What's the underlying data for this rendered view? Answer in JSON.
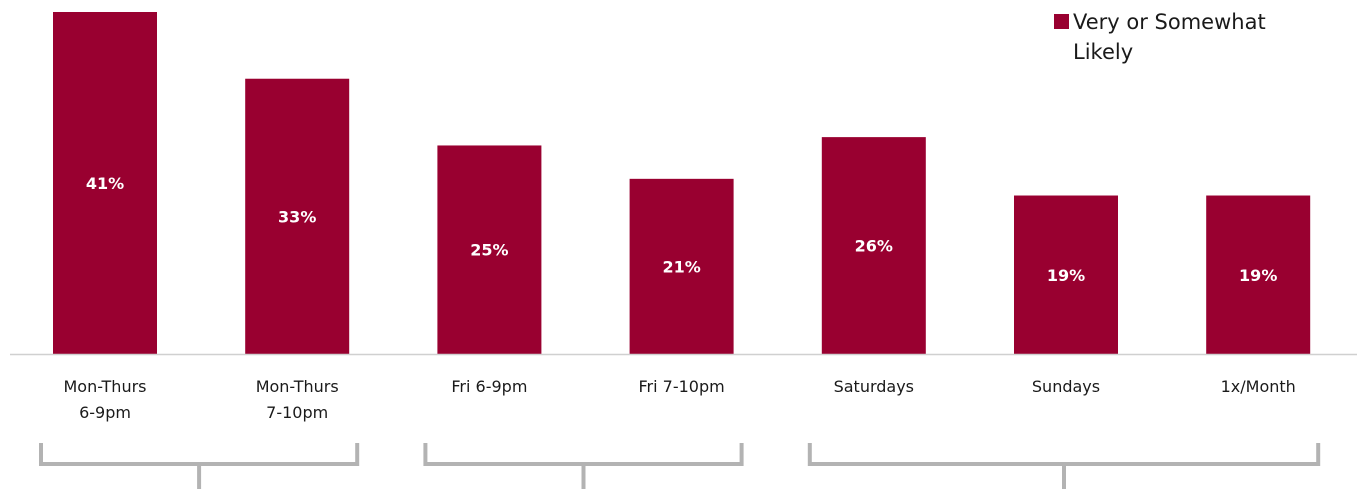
{
  "chart_data": {
    "type": "bar",
    "categories": [
      [
        "Mon-Thurs",
        "6-9pm"
      ],
      [
        "Mon-Thurs",
        "7-10pm"
      ],
      [
        "Fri 6-9pm"
      ],
      [
        "Fri 7-10pm"
      ],
      [
        "Saturdays"
      ],
      [
        "Sundays"
      ],
      [
        "1x/Month"
      ]
    ],
    "series": [
      {
        "name": "Very or Somewhat Likely",
        "values": [
          41,
          33,
          25,
          21,
          26,
          19,
          19
        ],
        "labels": [
          "41%",
          "33%",
          "25%",
          "21%",
          "26%",
          "19%",
          "19%"
        ],
        "color": "#990030"
      }
    ],
    "legend": {
      "lines": [
        "Very or Somewhat",
        "Likely"
      ],
      "position": "top-right"
    },
    "ylim": [
      0,
      41
    ],
    "grid": false,
    "axis_color": "#d0d0d0",
    "bracket_color": "#b3b3b3",
    "brackets": [
      {
        "from_category": 0,
        "to_category": 1
      },
      {
        "from_category": 2,
        "to_category": 3
      },
      {
        "from_category": 4,
        "to_category": 6
      }
    ]
  }
}
